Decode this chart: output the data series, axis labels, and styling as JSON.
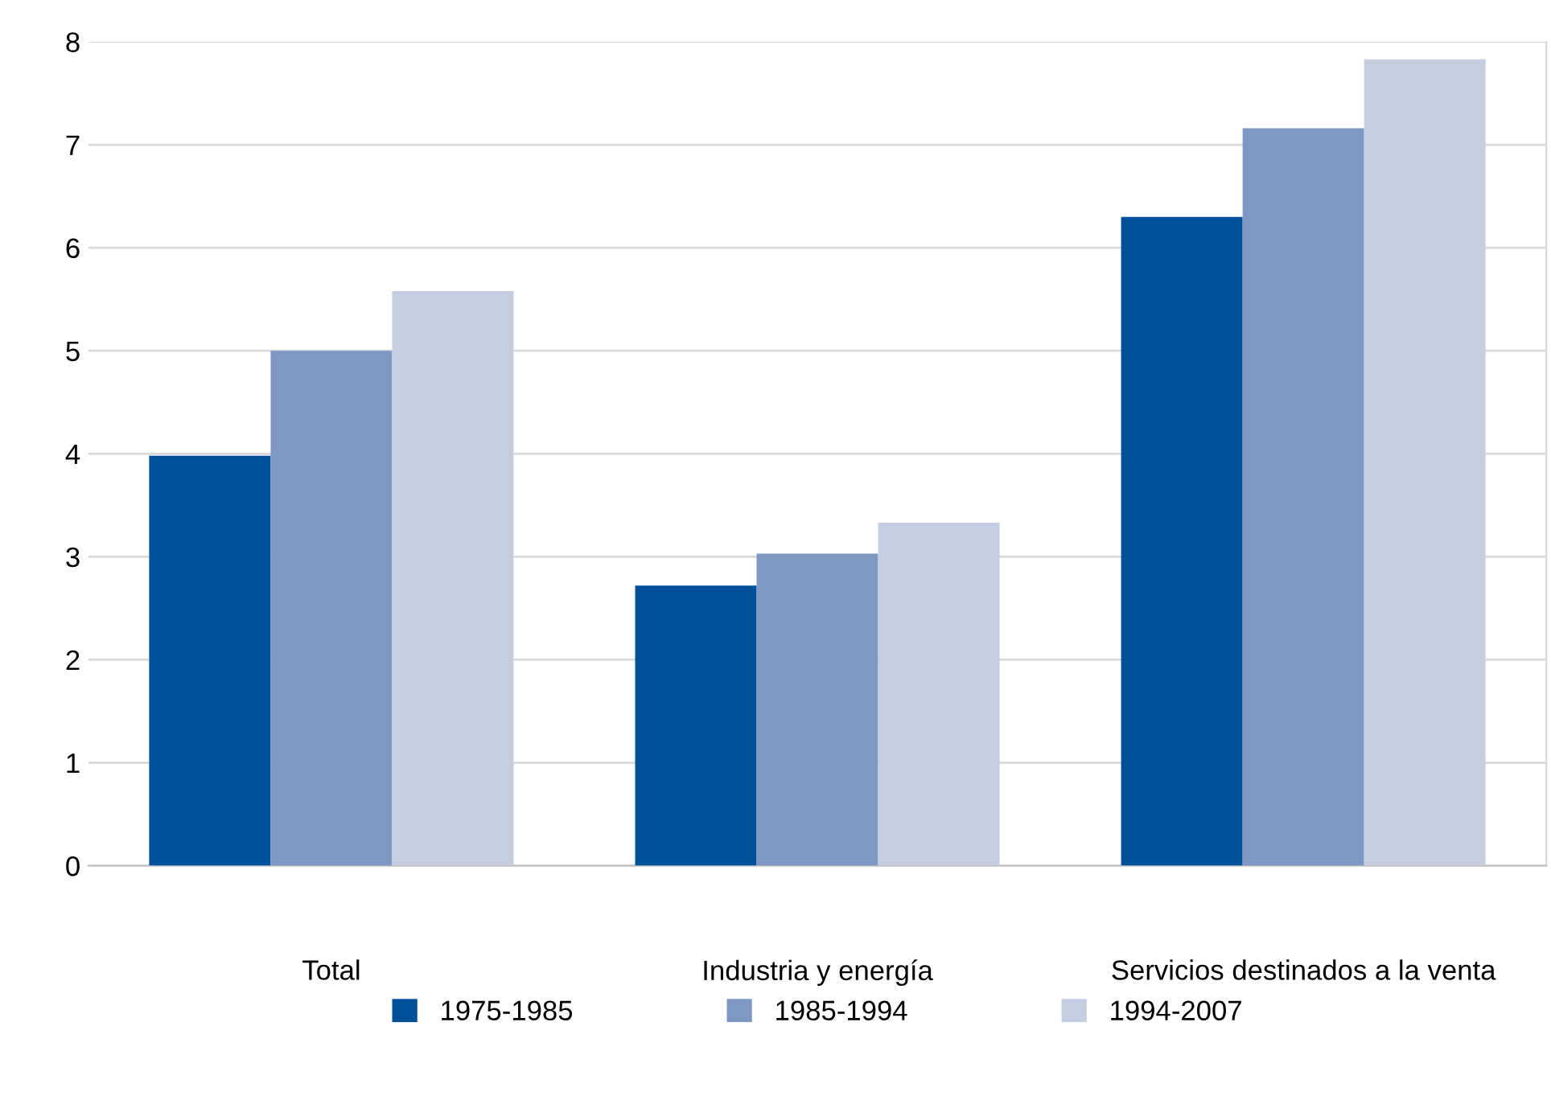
{
  "chart_data": {
    "type": "bar",
    "categories": [
      "Total",
      "Industria y energía",
      "Servicios destinados a la venta"
    ],
    "series": [
      {
        "name": "1975-1985",
        "color": "#004f9a",
        "values": [
          3.98,
          2.72,
          6.3
        ]
      },
      {
        "name": "1985-1994",
        "color": "#7f97c3",
        "values": [
          5.0,
          3.03,
          7.16
        ]
      },
      {
        "name": "1994-2007",
        "color": "#c5cde1",
        "values": [
          5.58,
          3.33,
          7.83
        ]
      }
    ],
    "ylim": [
      0,
      8
    ],
    "yticks": [
      0,
      1,
      2,
      3,
      4,
      5,
      6,
      7,
      8
    ],
    "grid": "y",
    "legend": "bottom"
  }
}
